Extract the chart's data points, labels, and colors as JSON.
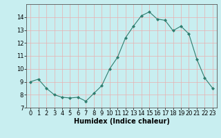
{
  "x": [
    0,
    1,
    2,
    3,
    4,
    5,
    6,
    7,
    8,
    9,
    10,
    11,
    12,
    13,
    14,
    15,
    16,
    17,
    18,
    19,
    20,
    21,
    22,
    23
  ],
  "y": [
    9.0,
    9.2,
    8.5,
    8.0,
    7.8,
    7.75,
    7.8,
    7.5,
    8.1,
    8.7,
    10.0,
    10.9,
    12.4,
    13.3,
    14.1,
    14.4,
    13.85,
    13.75,
    12.95,
    13.3,
    12.7,
    10.75,
    9.3,
    8.5
  ],
  "xlim": [
    -0.5,
    23.5
  ],
  "ylim": [
    7,
    15
  ],
  "yticks": [
    7,
    8,
    9,
    10,
    11,
    12,
    13,
    14
  ],
  "xticks": [
    0,
    1,
    2,
    3,
    4,
    5,
    6,
    7,
    8,
    9,
    10,
    11,
    12,
    13,
    14,
    15,
    16,
    17,
    18,
    19,
    20,
    21,
    22,
    23
  ],
  "xlabel": "Humidex (Indice chaleur)",
  "line_color": "#2e7d6e",
  "marker": "D",
  "marker_size": 2.0,
  "background_color": "#c8eef0",
  "grid_color": "#e8b0b0",
  "tick_label_fontsize": 6,
  "xlabel_fontsize": 7
}
